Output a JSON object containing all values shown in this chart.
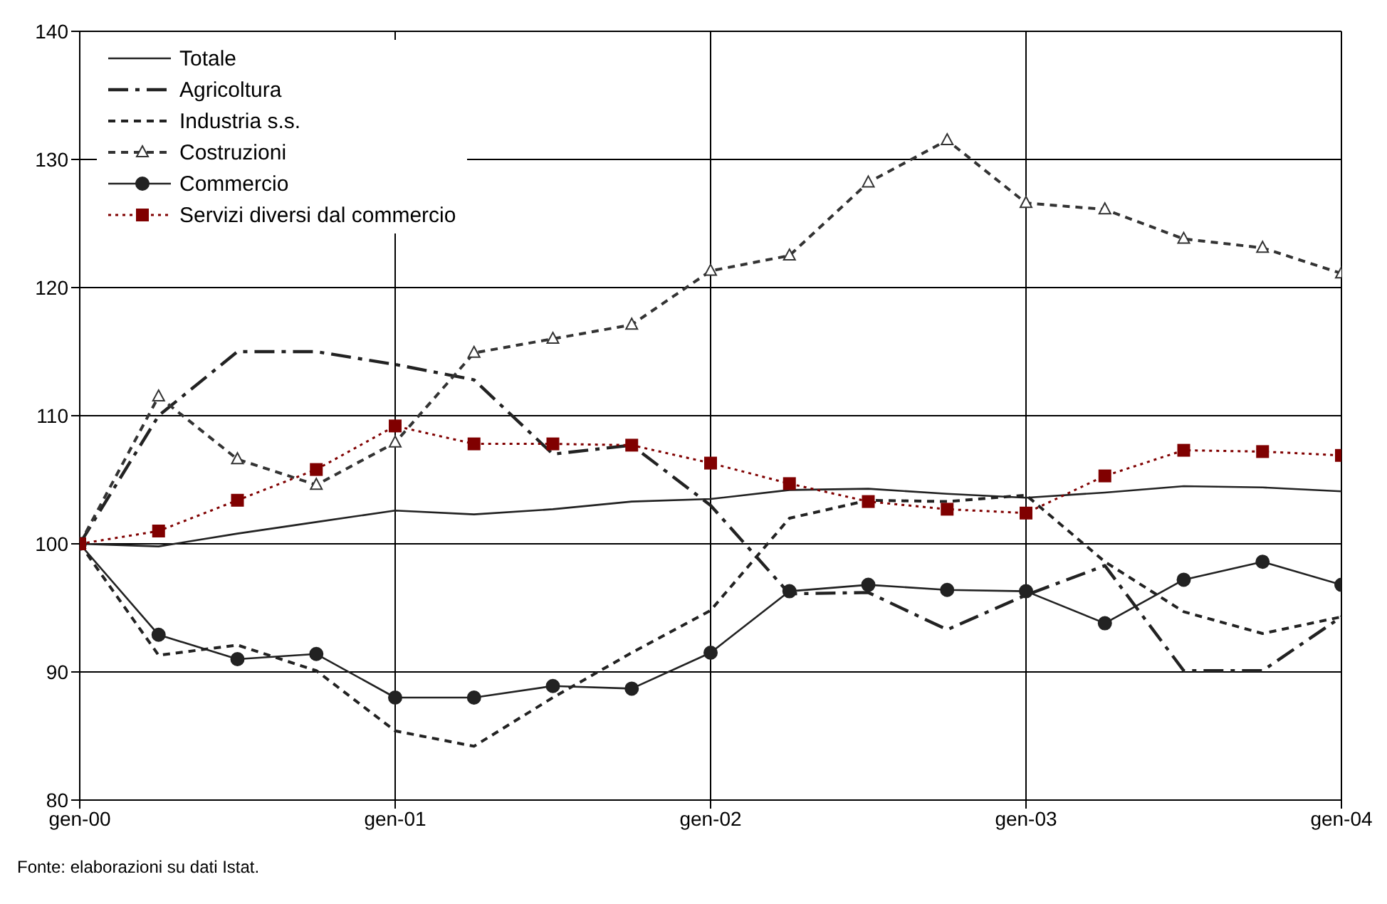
{
  "chart_data": {
    "type": "line",
    "x": [
      "2000-01",
      "2000-04",
      "2000-07",
      "2000-10",
      "2001-01",
      "2001-04",
      "2001-07",
      "2001-10",
      "2002-01",
      "2002-04",
      "2002-07",
      "2002-10",
      "2003-01",
      "2003-04",
      "2003-07",
      "2003-10",
      "2004-01"
    ],
    "xlim": [
      "2000-01",
      "2004-01"
    ],
    "xticks": [
      {
        "value": "2000-01",
        "label": "gen-00"
      },
      {
        "value": "2001-01",
        "label": "gen-01"
      },
      {
        "value": "2002-01",
        "label": "gen-02"
      },
      {
        "value": "2003-01",
        "label": "gen-03"
      },
      {
        "value": "2004-01",
        "label": "gen-04"
      }
    ],
    "ylim": [
      80,
      140
    ],
    "yticks": [
      80,
      90,
      100,
      110,
      120,
      130,
      140
    ],
    "grid": true,
    "legend": "top left",
    "series": [
      {
        "name": "Totale",
        "color": "#222222",
        "line_style": "solid",
        "marker": "none",
        "values": [
          100,
          99.8,
          100.8,
          101.7,
          102.6,
          102.3,
          102.7,
          103.3,
          103.5,
          104.2,
          104.3,
          103.9,
          103.6,
          104.0,
          104.5,
          104.4,
          104.1
        ]
      },
      {
        "name": "Agricoltura",
        "color": "#222222",
        "line_style": "dashdot",
        "marker": "none",
        "values": [
          100,
          110,
          115,
          115,
          114,
          112.8,
          107,
          107.7,
          103,
          96.1,
          96.2,
          93.3,
          96,
          98.3,
          90.1,
          90.1,
          94.3
        ]
      },
      {
        "name": "Industria s.s.",
        "color": "#222222",
        "line_style": "dashed",
        "marker": "none",
        "values": [
          100,
          91.3,
          92.1,
          90.1,
          85.4,
          84.2,
          88,
          91.5,
          94.8,
          102,
          103.4,
          103.3,
          103.8,
          98.6,
          94.7,
          93,
          94.3
        ]
      },
      {
        "name": "Costruzioni",
        "color": "#333333",
        "line_style": "dashed",
        "marker": "triangle",
        "values": [
          100,
          111.5,
          106.6,
          104.6,
          107.9,
          114.9,
          116,
          117.1,
          121.3,
          122.5,
          128.2,
          131.5,
          126.6,
          126.1,
          123.8,
          123.1,
          121.1
        ]
      },
      {
        "name": "Commercio",
        "color": "#222222",
        "line_style": "solid",
        "marker": "circle",
        "values": [
          100,
          92.9,
          91,
          91.4,
          88,
          88,
          88.9,
          88.7,
          91.5,
          96.3,
          96.8,
          96.4,
          96.3,
          93.8,
          97.2,
          98.6,
          96.8
        ]
      },
      {
        "name": "Servizi diversi dal commercio",
        "color": "#800000",
        "line_style": "dotted",
        "marker": "square",
        "values": [
          100,
          101,
          103.4,
          105.8,
          109.2,
          107.8,
          107.8,
          107.7,
          106.3,
          104.7,
          103.3,
          102.7,
          102.4,
          105.3,
          107.3,
          107.2,
          106.9
        ]
      }
    ],
    "annotations": [
      "Fonte: elaborazioni su dati Istat."
    ]
  }
}
